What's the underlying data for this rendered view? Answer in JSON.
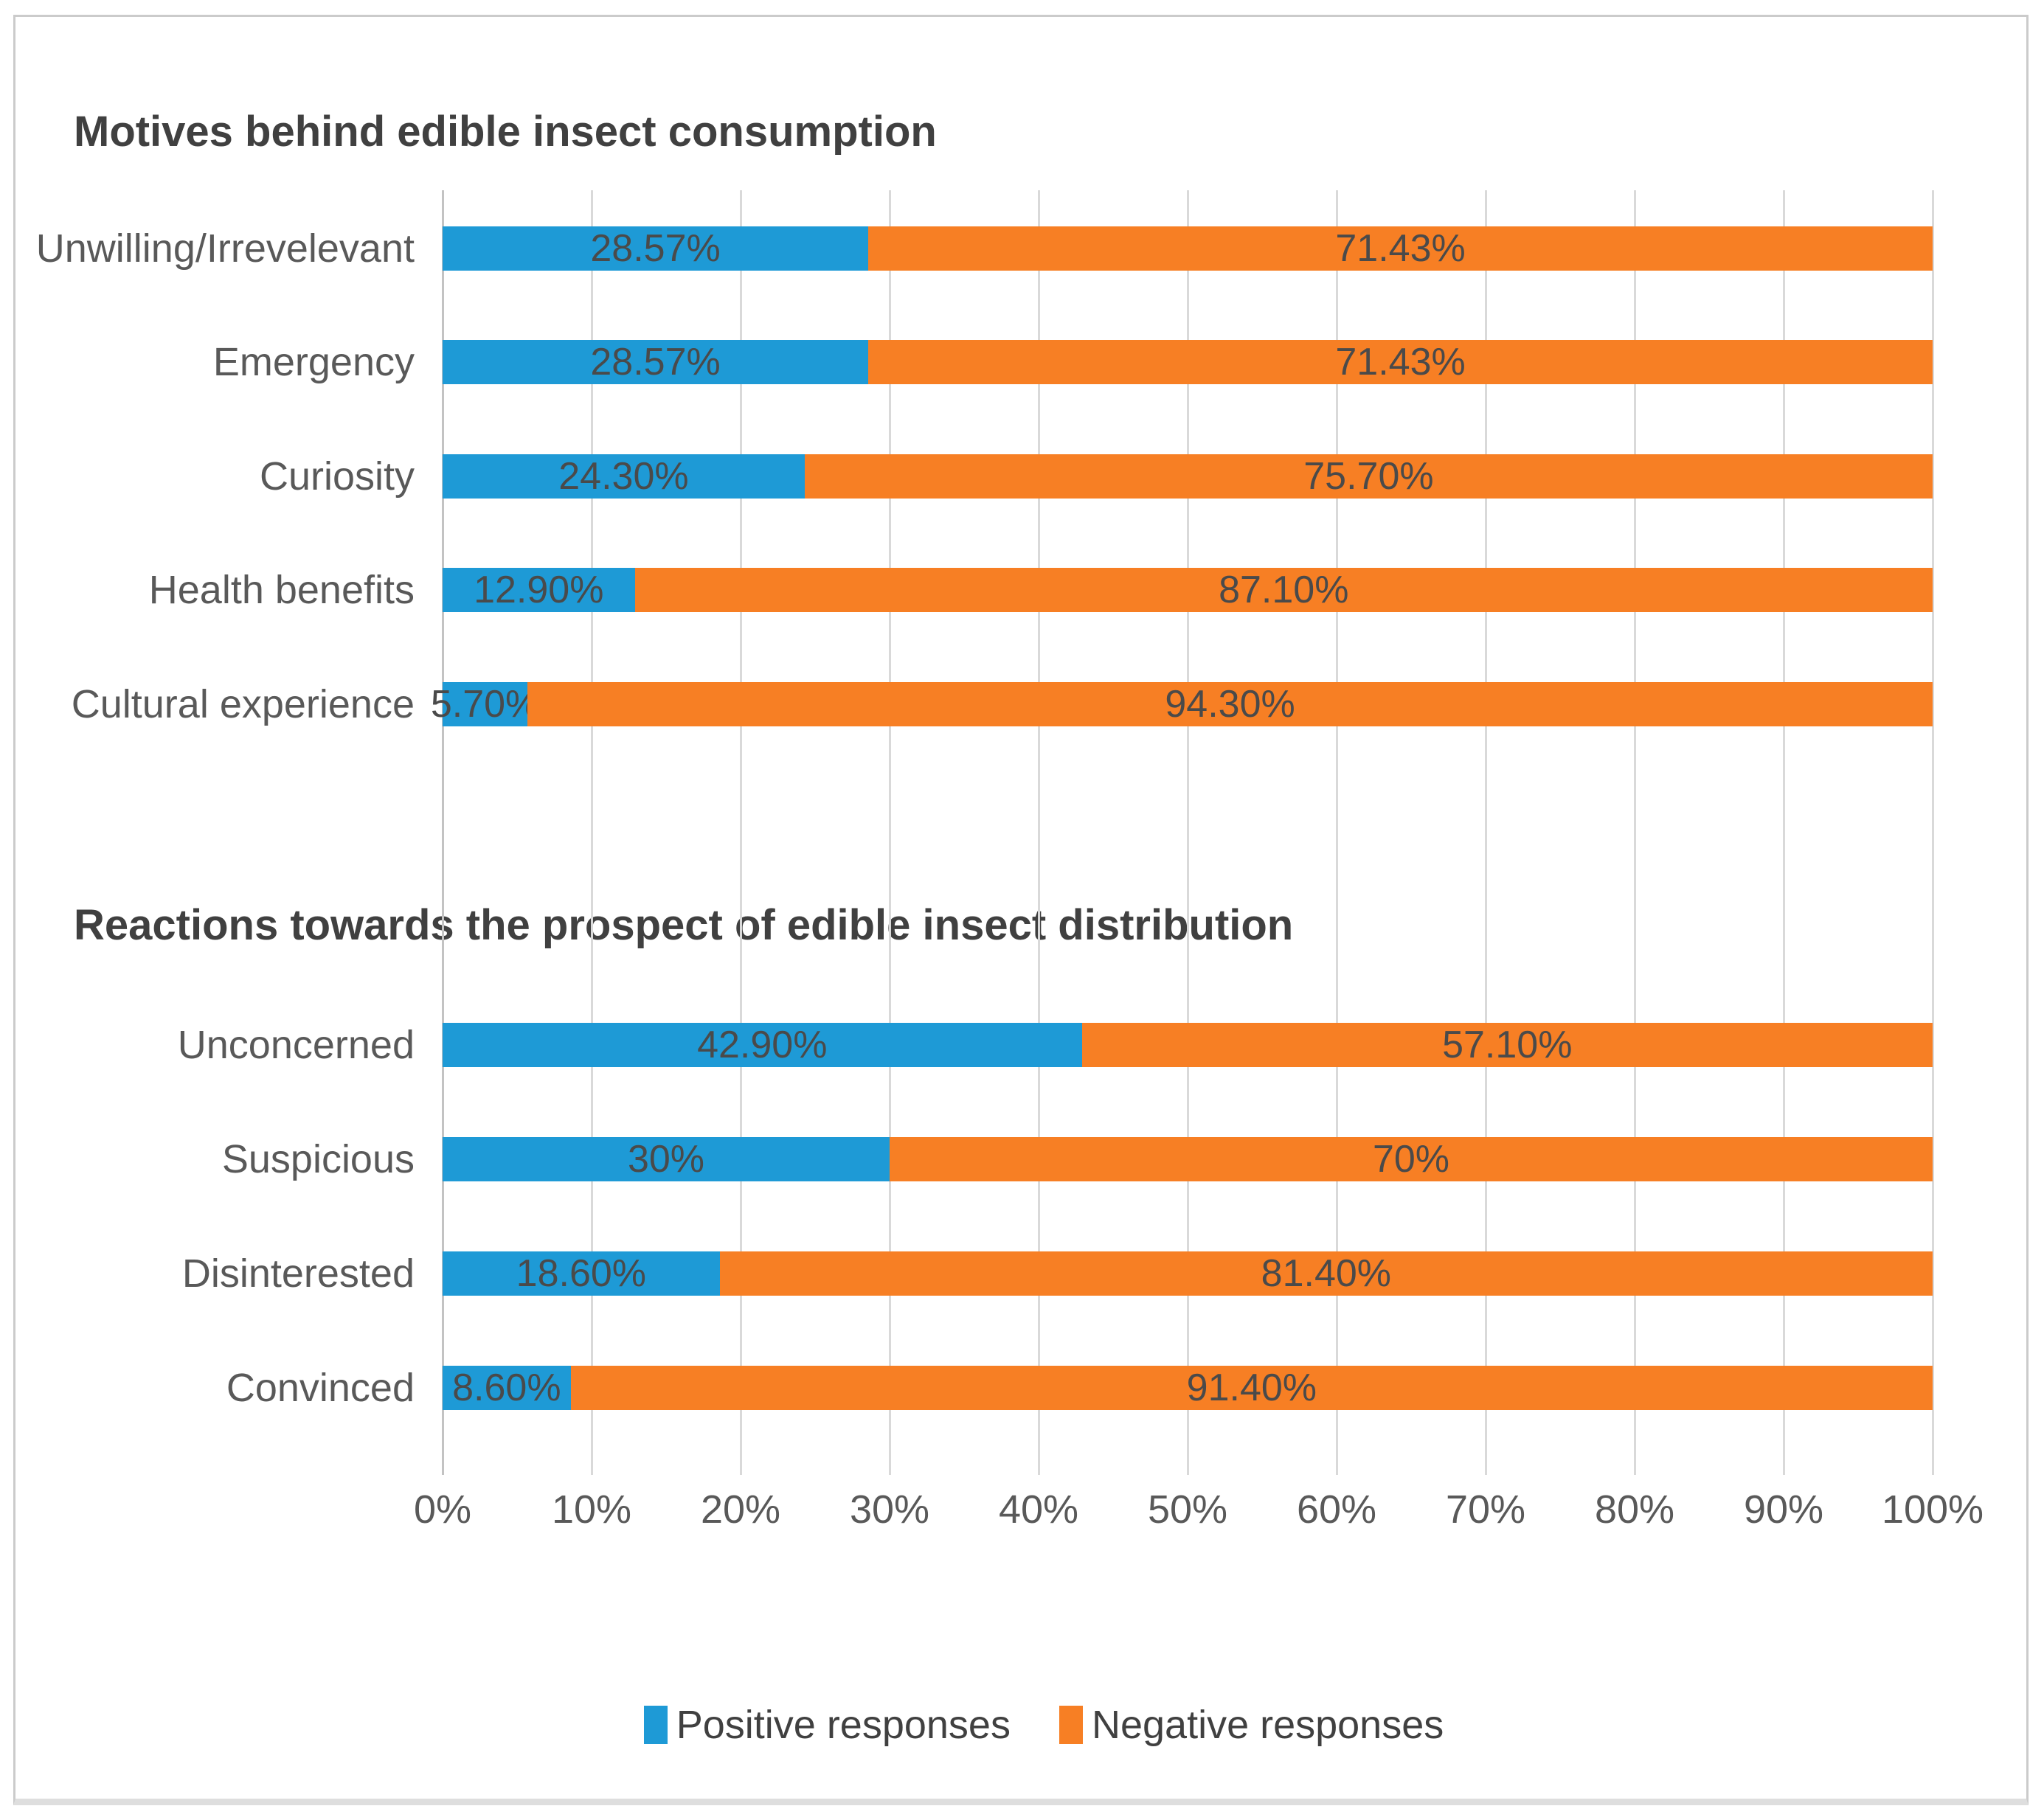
{
  "chart_data": [
    {
      "type": "bar",
      "orientation": "horizontal",
      "stacked": true,
      "title": "Motives behind edible insect consumption",
      "categories": [
        "Unwilling/Irrevelevant",
        "Emergency",
        "Curiosity",
        "Health benefits",
        "Cultural experience"
      ],
      "series": [
        {
          "name": "Positive responses",
          "values": [
            28.57,
            28.57,
            24.3,
            12.9,
            5.7
          ],
          "labels": [
            "28.57%",
            "28.57%",
            "24.30%",
            "12.90%",
            "5.70%"
          ]
        },
        {
          "name": "Negative responses",
          "values": [
            71.43,
            71.43,
            75.7,
            87.1,
            94.3
          ],
          "labels": [
            "71.43%",
            "71.43%",
            "75.70%",
            "87.10%",
            "94.30%"
          ]
        }
      ],
      "xlim": [
        0,
        100
      ],
      "grid": "vertical"
    },
    {
      "type": "bar",
      "orientation": "horizontal",
      "stacked": true,
      "title": "Reactions towards the prospect of edible insect distribution",
      "categories": [
        "Unconcerned",
        "Suspicious",
        "Disinterested",
        "Convinced"
      ],
      "series": [
        {
          "name": "Positive responses",
          "values": [
            42.9,
            30,
            18.6,
            8.6
          ],
          "labels": [
            "42.90%",
            "30%",
            "18.60%",
            "8.60%"
          ]
        },
        {
          "name": "Negative responses",
          "values": [
            57.1,
            70,
            81.4,
            91.4
          ],
          "labels": [
            "57.10%",
            "70%",
            "81.40%",
            "91.40%"
          ]
        }
      ],
      "xlim": [
        0,
        100
      ],
      "grid": "vertical"
    }
  ],
  "x_axis": {
    "tick_labels": [
      "0%",
      "10%",
      "20%",
      "30%",
      "40%",
      "50%",
      "60%",
      "70%",
      "80%",
      "90%",
      "100%"
    ]
  },
  "legend": {
    "items": [
      {
        "label": "Positive responses",
        "color": "#1e9ad6"
      },
      {
        "label": "Negative responses",
        "color": "#f77f24"
      }
    ],
    "position": "bottom-center"
  },
  "colors": {
    "positive": "#1e9ad6",
    "negative": "#f77f24",
    "gridline": "#d9d9d9",
    "axis_line": "#c3c3c3",
    "title_text": "#404040",
    "value_text": "#4a4a4a",
    "tick_text": "#595959"
  }
}
